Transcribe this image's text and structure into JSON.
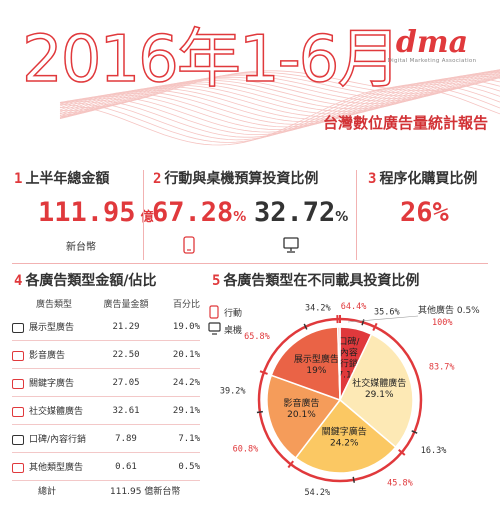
{
  "header": {
    "title_main": "2016年1-6月",
    "subtitle": "台灣數位廣告量統計報告",
    "logo_word": "dma",
    "logo_sub": "Digital Marketing Association"
  },
  "sec1": {
    "num": "1",
    "title": "上半年總金額",
    "value": "111.95",
    "unit": "億",
    "currency": "新台幣"
  },
  "sec2": {
    "num": "2",
    "title": "行動與桌機預算投資比例",
    "mobile_value": "67.28",
    "desktop_value": "32.72",
    "pct": "%"
  },
  "sec3": {
    "num": "3",
    "title": "程序化購買比例",
    "value": "26%"
  },
  "sec4": {
    "num": "4",
    "title": "各廣告類型金額/佔比",
    "headers": [
      "廣告類型",
      "廣告量金額",
      "百分比"
    ],
    "total_label": "總計",
    "total_value": "111.95 億新台幣"
  },
  "sec5": {
    "num": "5",
    "title": "各廣告類型在不同載具投資比例"
  },
  "legend": {
    "mobile": "行動",
    "desktop": "桌機"
  },
  "colors": {
    "accent": "#e0393c",
    "dark": "#333333"
  },
  "chart_data": [
    {
      "type": "table",
      "columns": [
        "廣告類型",
        "廣告量金額",
        "百分比"
      ],
      "rows": [
        {
          "icon": "display-ad-icon",
          "label": "展示型廣告",
          "amount": "21.29",
          "pct": "19.0%"
        },
        {
          "icon": "video-ad-icon",
          "label": "影音廣告",
          "amount": "22.50",
          "pct": "20.1%"
        },
        {
          "icon": "search-icon",
          "label": "關鍵字廣告",
          "amount": "27.05",
          "pct": "24.2%"
        },
        {
          "icon": "social-icon",
          "label": "社交媒體廣告",
          "amount": "32.61",
          "pct": "29.1%"
        },
        {
          "icon": "chat-icon",
          "label": "口碑/內容行銷",
          "amount": "7.89",
          "pct": "7.1%"
        },
        {
          "icon": "other-icon",
          "label": "其他類型廣告",
          "amount": "0.61",
          "pct": "0.5%"
        }
      ],
      "total": "111.95 億新台幣"
    },
    {
      "type": "pie",
      "slices": [
        {
          "label": "口碑/\n內容\n行銷",
          "value": 7.1,
          "pct_label": "7.1%",
          "color": "#e0393c",
          "mobile": "64.4%",
          "desktop": "35.6%",
          "mobile_value": 64.4
        },
        {
          "label": "社交媒體廣告",
          "value": 29.1,
          "pct_label": "29.1%",
          "color": "#fde9b5",
          "mobile": "83.7%",
          "desktop": "16.3%",
          "mobile_value": 83.7
        },
        {
          "label": "關鍵字廣告",
          "value": 24.2,
          "pct_label": "24.2%",
          "color": "#fbc863",
          "mobile": "45.8%",
          "desktop": "54.2%",
          "mobile_value": 45.8
        },
        {
          "label": "影音廣告",
          "value": 20.1,
          "pct_label": "20.1%",
          "color": "#f59c5a",
          "mobile": "60.8%",
          "desktop": "39.2%",
          "mobile_value": 60.8
        },
        {
          "label": "展示型廣告",
          "value": 19.0,
          "pct_label": "19%",
          "color": "#ea6346",
          "mobile": "65.8%",
          "desktop": "34.2%",
          "mobile_value": 65.8
        },
        {
          "label": "其他廣告",
          "value": 0.5,
          "pct_label": "",
          "color": "#f7b7a8",
          "mobile": "100%",
          "desktop": "",
          "mobile_value": 100
        }
      ],
      "other_label": "其他廣告 0.5%"
    }
  ]
}
